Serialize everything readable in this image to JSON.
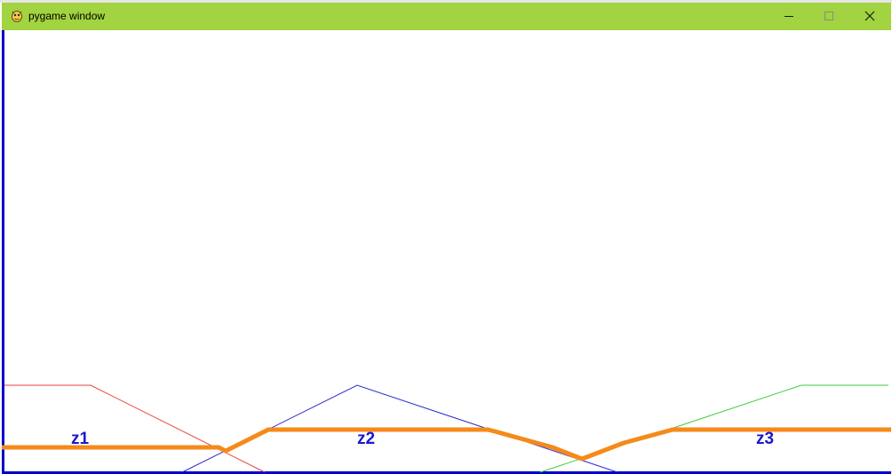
{
  "window": {
    "title": "pygame window",
    "icon": "pygame-snake-icon",
    "controls": {
      "minimize_icon": "minimize-icon",
      "maximize_icon": "maximize-icon",
      "close_icon": "close-icon"
    }
  },
  "scene": {
    "zone_labels": [
      "z1",
      "z2",
      "z3"
    ],
    "colors": {
      "titlebar": "#a2d340",
      "background": "#ffffff",
      "border": "#0000cc",
      "label": "#1a1acc",
      "zone1_membership": "#e8403c",
      "zone2_membership": "#2b2bd0",
      "zone3_membership": "#3cd03c",
      "highlight_path": "#f58a1a"
    }
  }
}
